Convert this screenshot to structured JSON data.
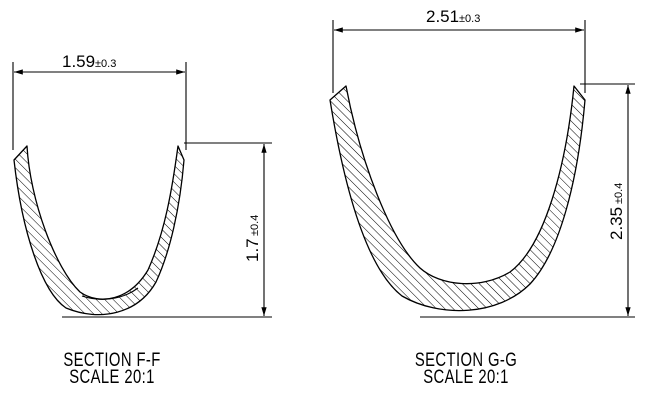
{
  "section_f": {
    "width_value": "1.59",
    "width_tolerance": "±0.3",
    "height_value": "1.7",
    "height_tolerance": "±0.4",
    "title": "SECTION  F-F",
    "scale": "SCALE  20:1"
  },
  "section_g": {
    "width_value": "2.51",
    "width_tolerance": "±0.3",
    "height_value": "2.35",
    "height_tolerance": "±0.4",
    "title": "SECTION  G-G",
    "scale": "SCALE  20:1"
  }
}
